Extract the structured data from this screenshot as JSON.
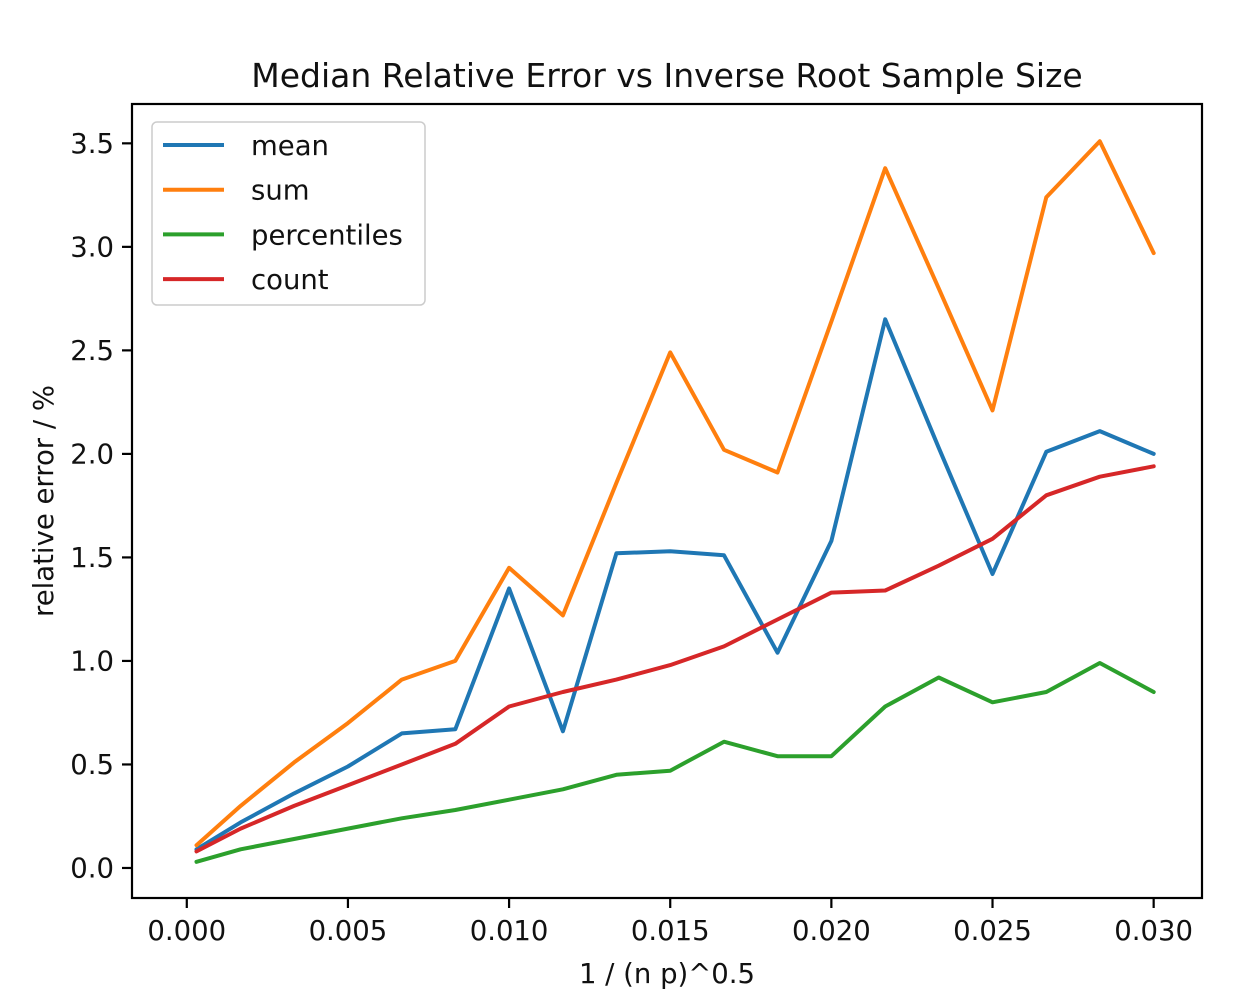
{
  "chart_data": {
    "type": "line",
    "title": "Median Relative Error vs Inverse Root Sample Size",
    "xlabel": "1 / (n p)^0.5",
    "ylabel": "relative error / %",
    "x": [
      0.0003,
      0.00167,
      0.00333,
      0.005,
      0.00667,
      0.00833,
      0.01,
      0.01167,
      0.01333,
      0.015,
      0.01667,
      0.01833,
      0.02,
      0.02167,
      0.02333,
      0.025,
      0.02667,
      0.02833,
      0.03
    ],
    "series": [
      {
        "name": "mean",
        "color": "#1f77b4",
        "values": [
          0.09,
          0.22,
          0.36,
          0.49,
          0.65,
          0.67,
          1.35,
          0.66,
          1.52,
          1.53,
          1.51,
          1.04,
          1.58,
          2.65,
          2.03,
          1.42,
          2.01,
          2.11,
          2.0
        ]
      },
      {
        "name": "sum",
        "color": "#ff7f0e",
        "values": [
          0.11,
          0.3,
          0.51,
          0.7,
          0.91,
          1.0,
          1.45,
          1.22,
          1.86,
          2.49,
          2.02,
          1.91,
          2.64,
          3.38,
          2.8,
          2.21,
          3.24,
          3.51,
          2.97
        ]
      },
      {
        "name": "percentiles",
        "color": "#2ca02c",
        "values": [
          0.03,
          0.09,
          0.14,
          0.19,
          0.24,
          0.28,
          0.33,
          0.38,
          0.45,
          0.47,
          0.61,
          0.54,
          0.54,
          0.78,
          0.92,
          0.8,
          0.85,
          0.99,
          0.85
        ]
      },
      {
        "name": "count",
        "color": "#d62728",
        "values": [
          0.08,
          0.19,
          0.3,
          0.4,
          0.5,
          0.6,
          0.78,
          0.85,
          0.91,
          0.98,
          1.07,
          1.2,
          1.33,
          1.34,
          1.46,
          1.59,
          1.8,
          1.89,
          1.94
        ]
      }
    ],
    "xticks": {
      "values": [
        0.0,
        0.005,
        0.01,
        0.015,
        0.02,
        0.025,
        0.03
      ],
      "labels": [
        "0.000",
        "0.005",
        "0.010",
        "0.015",
        "0.020",
        "0.025",
        "0.030"
      ]
    },
    "yticks": {
      "values": [
        0.0,
        0.5,
        1.0,
        1.5,
        2.0,
        2.5,
        3.0,
        3.5
      ],
      "labels": [
        "0.0",
        "0.5",
        "1.0",
        "1.5",
        "2.0",
        "2.5",
        "3.0",
        "3.5"
      ]
    },
    "xlim": [
      -0.0017,
      0.0315
    ],
    "ylim": [
      -0.145,
      3.69
    ],
    "grid": false,
    "legend": {
      "position": "upper left",
      "entries": [
        "mean",
        "sum",
        "percentiles",
        "count"
      ]
    },
    "style": {
      "line_width": 4,
      "spine_color": "#000000",
      "spine_width": 2.2,
      "tick_length": 10,
      "legend_border_color": "#cccccc",
      "background": "#ffffff"
    }
  }
}
